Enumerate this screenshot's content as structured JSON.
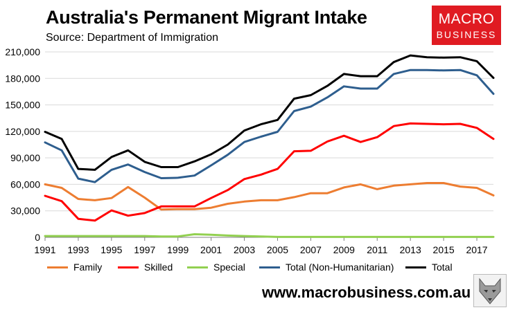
{
  "title": "Australia's Permanent Migrant Intake",
  "subtitle": "Source: Department of Immigration",
  "logo": {
    "line1": "MACRO",
    "line2": "BUSINESS"
  },
  "website": "www.macrobusiness.com.au",
  "colors": {
    "family": "#ed7d31",
    "skilled": "#ff0000",
    "special": "#92d050",
    "total_nh": "#2e5e8e",
    "total": "#000000",
    "logo_bg": "#e01b22"
  },
  "chart_data": {
    "type": "line",
    "title": "Australia's Permanent Migrant Intake",
    "subtitle": "Source: Department of Immigration",
    "xlabel": "",
    "ylabel": "",
    "x": [
      1991,
      1992,
      1993,
      1994,
      1995,
      1996,
      1997,
      1998,
      1999,
      2000,
      2001,
      2002,
      2003,
      2004,
      2005,
      2006,
      2007,
      2008,
      2009,
      2010,
      2011,
      2012,
      2013,
      2014,
      2015,
      2016,
      2017,
      2018
    ],
    "xlim": [
      1991,
      2018
    ],
    "xticks": [
      "1991",
      "1993",
      "1995",
      "1997",
      "1999",
      "2001",
      "2003",
      "2005",
      "2007",
      "2009",
      "2011",
      "2013",
      "2015",
      "2017"
    ],
    "ylim": [
      0,
      210000
    ],
    "yticks": [
      "0",
      "30,000",
      "60,000",
      "90,000",
      "120,000",
      "150,000",
      "180,000",
      "210,000"
    ],
    "grid": true,
    "legend_position": "bottom",
    "series": [
      {
        "name": "Family",
        "color": "#ed7d31",
        "values": [
          60000,
          56000,
          43500,
          42000,
          44500,
          57000,
          45000,
          31500,
          32000,
          32000,
          33500,
          38000,
          40500,
          42000,
          42000,
          45500,
          50000,
          50000,
          56500,
          60000,
          54500,
          58500,
          60000,
          61500,
          61500,
          57500,
          56000,
          47500
        ]
      },
      {
        "name": "Skilled",
        "color": "#ff0000",
        "values": [
          47000,
          41000,
          21000,
          19000,
          30500,
          24500,
          27500,
          35000,
          35000,
          35000,
          44500,
          53500,
          66000,
          71000,
          77500,
          97500,
          98000,
          108500,
          115000,
          108000,
          113500,
          126000,
          129000,
          128500,
          128000,
          128500,
          124000,
          111500
        ]
      },
      {
        "name": "Special",
        "color": "#92d050",
        "values": [
          1500,
          1500,
          1500,
          1500,
          1500,
          1500,
          1500,
          1000,
          1000,
          3500,
          3000,
          2000,
          1500,
          1000,
          500,
          500,
          500,
          500,
          500,
          500,
          500,
          500,
          500,
          500,
          500,
          500,
          500,
          500
        ]
      },
      {
        "name": "Total (Non-Humanitarian)",
        "color": "#2e5e8e",
        "values": [
          107500,
          98500,
          66500,
          62500,
          76500,
          82500,
          74000,
          67000,
          67500,
          70000,
          81500,
          93500,
          108000,
          114000,
          119500,
          143000,
          148000,
          158500,
          171000,
          168500,
          168500,
          185000,
          189500,
          189500,
          189000,
          189500,
          183500,
          162500
        ]
      },
      {
        "name": "Total",
        "color": "#000000",
        "values": [
          119500,
          111500,
          77500,
          76500,
          91000,
          98500,
          85500,
          79500,
          79500,
          86000,
          94000,
          105000,
          121000,
          128000,
          133000,
          157000,
          161000,
          171500,
          185000,
          182500,
          182500,
          198500,
          206000,
          204000,
          203500,
          204000,
          199500,
          180500
        ]
      }
    ]
  }
}
